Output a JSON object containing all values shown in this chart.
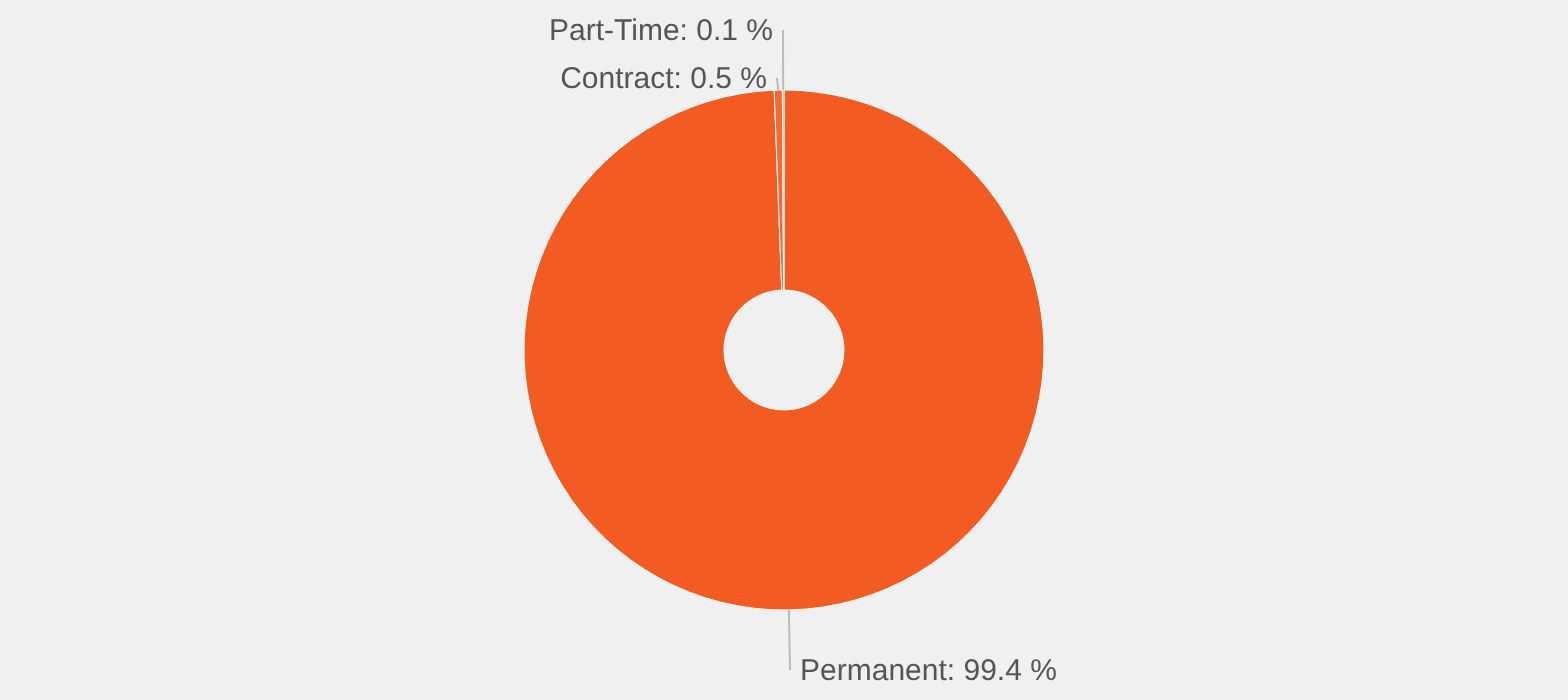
{
  "chart_data": {
    "type": "donut",
    "categories": [
      "Permanent",
      "Contract",
      "Part-Time"
    ],
    "values": [
      99.4,
      0.5,
      0.1
    ],
    "value_labels": [
      "99.4 %",
      "0.5 %",
      "0.1 %"
    ],
    "colors": [
      "#f25c22",
      "#f26a35",
      "#f47a48"
    ]
  }
}
